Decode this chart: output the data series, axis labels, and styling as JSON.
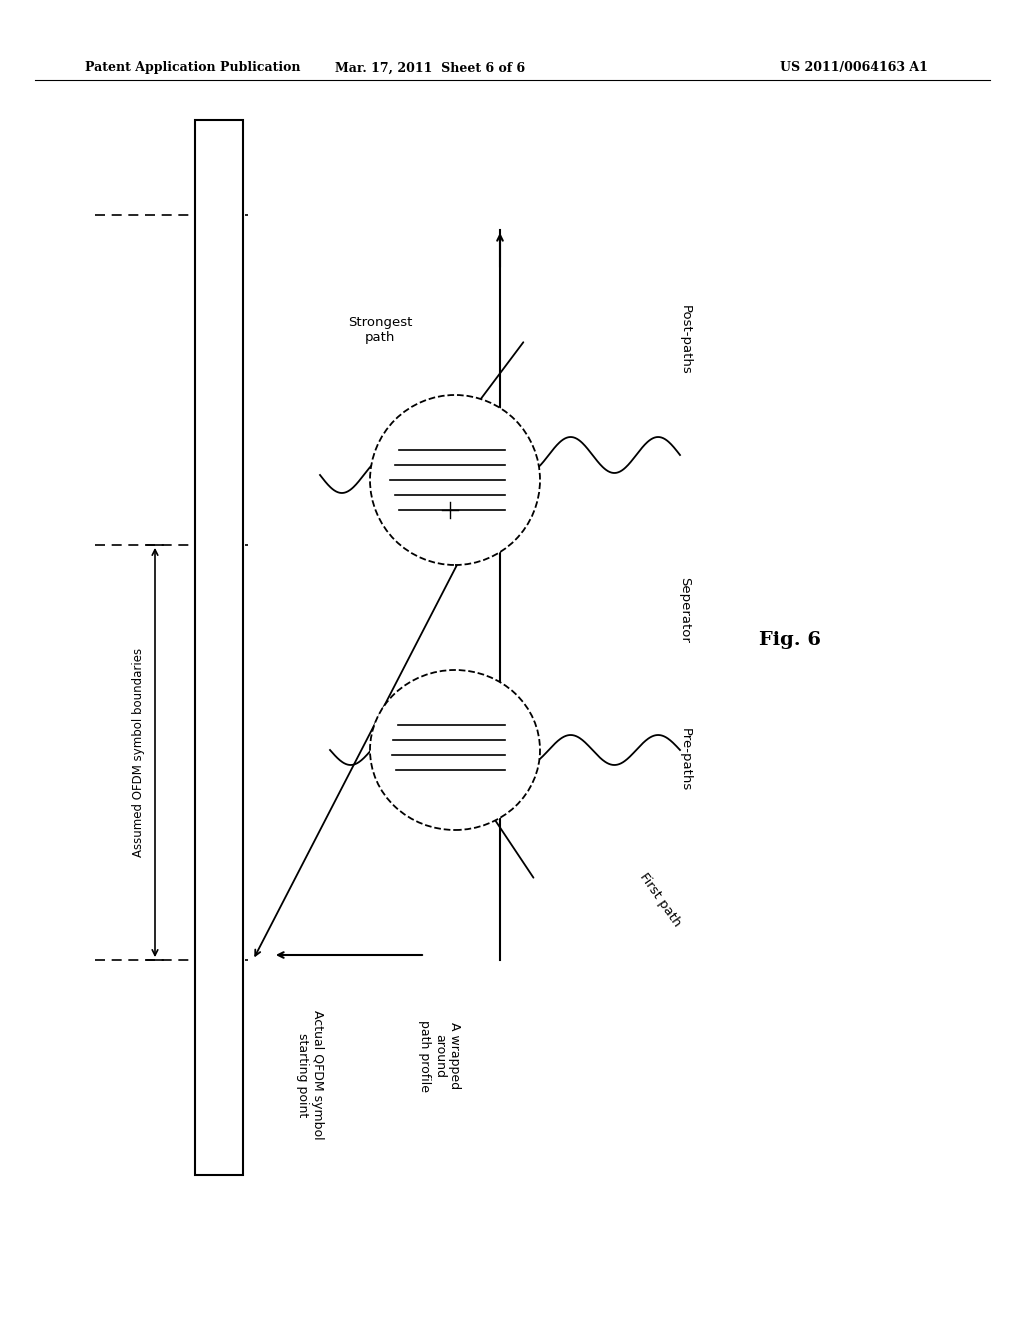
{
  "bg_color": "#ffffff",
  "header_left": "Patent Application Publication",
  "header_mid": "Mar. 17, 2011  Sheet 6 of 6",
  "header_right": "US 2011/0064163 A1",
  "fig_label": "Fig. 6",
  "assumed_ofdm_label": "Assumed OFDM symbol boundaries",
  "actual_ofdm_label": "Actual QFDM symbol\nstarting point",
  "wrapped_label": "A wrapped\naround\npath profile",
  "strongest_label": "Strongest\npath",
  "post_paths_label": "Post-paths",
  "separator_label": "Seperator",
  "pre_paths_label": "Pre-paths",
  "first_path_label": "First path"
}
